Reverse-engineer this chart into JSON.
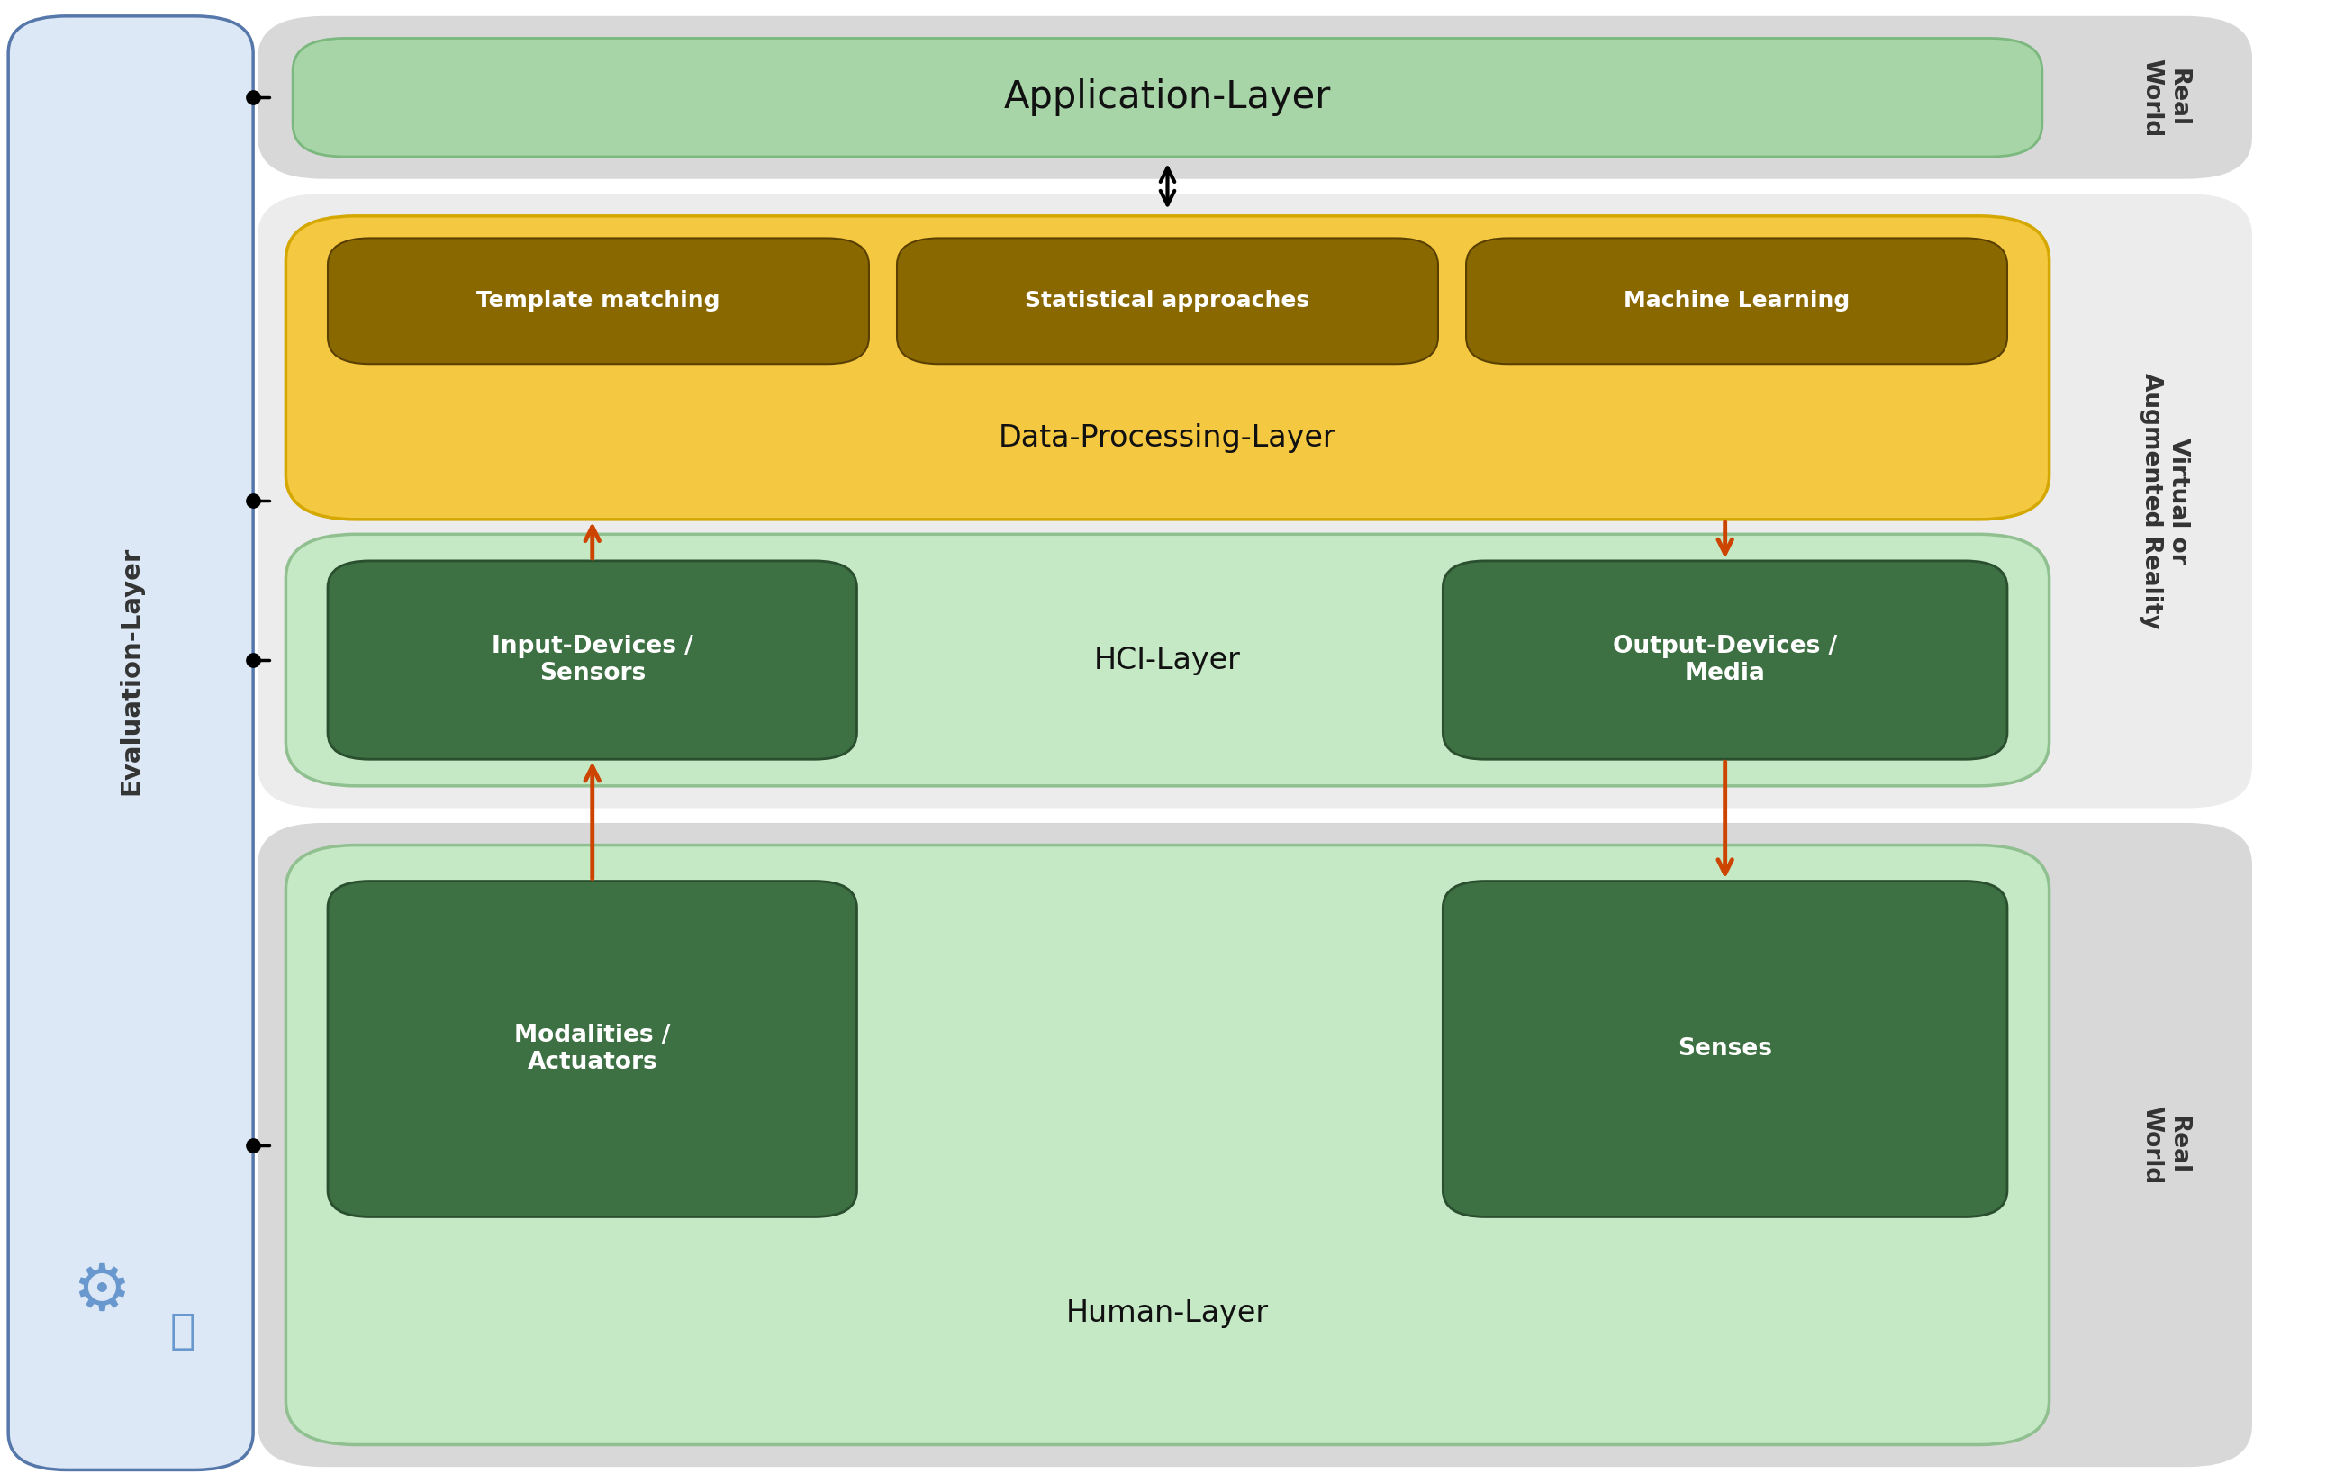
{
  "fig_width": 25.93,
  "fig_height": 16.47,
  "bg_color": "#ffffff",
  "eval_panel_color": "#dce8f5",
  "eval_panel_border": "#5577aa",
  "eval_text": "Evaluation-Layer",
  "app_layer_color": "#a8d5a8",
  "app_layer_border": "#7ab87e",
  "app_layer_text": "Application-Layer",
  "data_proc_color": "#f5c842",
  "data_proc_border": "#d4a800",
  "data_proc_text": "Data-Processing-Layer",
  "data_proc_sub_color": "#8a6800",
  "data_proc_sub_border": "#5a4000",
  "data_proc_sub_items": [
    "Template matching",
    "Statistical approaches",
    "Machine Learning"
  ],
  "hci_layer_color": "#c5e8c5",
  "hci_layer_border": "#90c090",
  "hci_text": "HCI-Layer",
  "hci_left_color": "#3d7042",
  "hci_left_border": "#2a4f2e",
  "hci_left_text": "Input-Devices /\nSensors",
  "hci_right_color": "#3d7042",
  "hci_right_border": "#2a4f2e",
  "hci_right_text": "Output-Devices /\nMedia",
  "human_layer_color": "#c5e8c5",
  "human_layer_border": "#90c090",
  "human_text": "Human-Layer",
  "human_left_color": "#3d7042",
  "human_left_border": "#2a4f2e",
  "human_left_text": "Modalities /\nActuators",
  "human_right_color": "#3d7042",
  "human_right_border": "#2a4f2e",
  "human_right_text": "Senses",
  "gray_top_color": "#d8d8d8",
  "gray_mid_color": "#ececec",
  "gray_bot_color": "#d8d8d8",
  "arrow_color": "#cc4400",
  "black": "#111111",
  "label_rw_top": "Real\nWorld",
  "label_vr": "Virtual or\nAugmented Reality",
  "label_rw_bot": "Real\nWorld"
}
